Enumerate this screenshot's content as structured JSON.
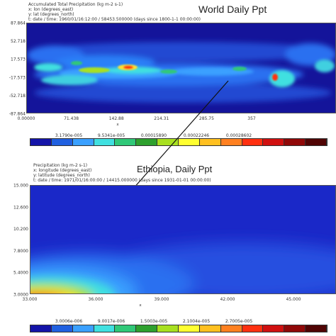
{
  "chart_data": [
    {
      "type": "heatmap",
      "title": "World Daily Ppt",
      "header_lines": [
        "Accumulated Total Precipitation (kg m-2 s-1)",
        "x: lon (degrees_east)",
        "y: lat (degrees_north)",
        "t: date / time: 1960/01/16:12:00 / 58453.500000 (days since 1800-1-1 00:00:00)"
      ],
      "xlabel": "x",
      "x_ticks": [
        "0.00000",
        "71.438",
        "142.88",
        "214.31",
        "285.75",
        "357"
      ],
      "y_ticks": [
        "87.864",
        "52.718",
        "17.573",
        "-17.573",
        "-52.718",
        "-87.864"
      ],
      "colorbar_labels": [
        "3.1790e-005",
        "9.5341e-005",
        "0.00015890",
        "0.00022246",
        "0.00028602"
      ]
    },
    {
      "type": "heatmap",
      "title": "Ethiopia, Daily Ppt",
      "header_lines": [
        "Precipitation (kg m-2 s-1)",
        "x: longitude (degrees_east)",
        "y: latitude (degrees_north)",
        "t: date / time: 1971/01/16:00:00 / 14415.000000 (days since 1931-01-01 00:00:00)"
      ],
      "xlabel": "x",
      "x_ticks": [
        "33.000",
        "36.000",
        "39.000",
        "42.000",
        "45.000"
      ],
      "y_ticks": [
        "15.000",
        "12.600",
        "10.200",
        "7.8000",
        "5.4000",
        "3.0000"
      ],
      "colorbar_labels": [
        "3.0006e-006",
        "9.0017e-006",
        "1.5003e-005",
        "2.1004e-005",
        "2.7005e-005"
      ]
    }
  ],
  "colorbar_colors": [
    "#1414a8",
    "#2060e0",
    "#3aa0ff",
    "#40e0e0",
    "#30c878",
    "#2ea02e",
    "#a8e020",
    "#ffff30",
    "#ffc020",
    "#ff8020",
    "#ff3010",
    "#d01010",
    "#900808",
    "#500404"
  ]
}
